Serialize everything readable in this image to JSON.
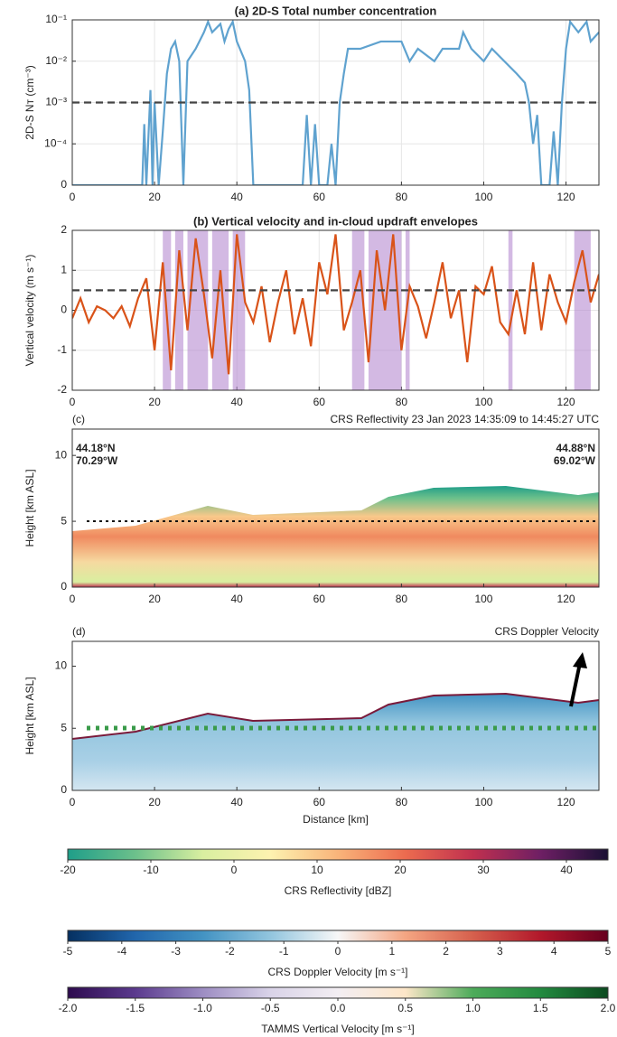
{
  "chart_data": [
    {
      "type": "line",
      "title": "(a) 2D-S Total number concentration",
      "ylabel": "2D-S Nᴛ (cm⁻³)",
      "color": "#5fa2cf",
      "log_scale": true,
      "grid": true,
      "x": [
        0,
        17,
        17.5,
        18,
        19,
        19.5,
        20,
        21,
        22,
        23,
        24,
        25,
        26,
        27,
        28,
        30,
        32,
        33,
        34,
        36,
        37,
        38,
        39,
        40,
        42,
        43,
        44,
        45,
        56,
        57,
        58,
        59,
        60,
        62,
        63,
        64,
        65,
        66,
        67,
        70,
        75,
        80,
        82,
        84,
        88,
        90,
        94,
        95,
        97,
        100,
        102,
        105,
        108,
        110,
        111,
        112,
        113,
        114,
        116,
        117,
        118,
        119,
        120,
        121,
        123,
        125,
        126,
        128
      ],
      "values": [
        1e-05,
        1e-05,
        0.0003,
        1e-05,
        0.002,
        1e-05,
        0.001,
        1e-05,
        0.0002,
        0.005,
        0.02,
        0.03,
        0.01,
        1e-05,
        0.01,
        0.02,
        0.05,
        0.09,
        0.05,
        0.08,
        0.03,
        0.06,
        0.09,
        0.03,
        0.01,
        0.002,
        1e-05,
        1e-05,
        1e-05,
        0.0005,
        1e-05,
        0.0003,
        1e-05,
        1e-05,
        0.0001,
        1e-05,
        0.001,
        0.005,
        0.02,
        0.02,
        0.03,
        0.03,
        0.01,
        0.02,
        0.01,
        0.02,
        0.02,
        0.05,
        0.02,
        0.01,
        0.02,
        0.01,
        0.005,
        0.003,
        0.001,
        0.0001,
        0.0005,
        1e-05,
        1e-05,
        0.0002,
        1e-05,
        0.001,
        0.02,
        0.09,
        0.05,
        0.09,
        0.03,
        0.05
      ],
      "reference_line": 0.001,
      "xlim": [
        0,
        128
      ],
      "xticks": [
        0,
        20,
        40,
        60,
        80,
        100,
        120
      ],
      "ylim": [
        1e-05,
        0.1
      ],
      "yticks": [
        {
          "value": 1e-05,
          "label": "0"
        },
        {
          "value": 0.0001,
          "label": "10⁻⁴"
        },
        {
          "value": 0.001,
          "label": "10⁻³"
        },
        {
          "value": 0.01,
          "label": "10⁻²"
        },
        {
          "value": 0.1,
          "label": "10⁻¹"
        }
      ]
    },
    {
      "type": "line",
      "title": "(b) Vertical velocity and in-cloud updraft envelopes",
      "ylabel": "Vertical velocity (m s⁻¹)",
      "color": "#d95319",
      "shade_color": "#b58bd0",
      "grid": true,
      "x": [
        0,
        2,
        4,
        6,
        8,
        10,
        12,
        14,
        16,
        18,
        20,
        22,
        24,
        26,
        28,
        30,
        32,
        34,
        36,
        38,
        40,
        42,
        44,
        46,
        48,
        50,
        52,
        54,
        56,
        58,
        60,
        62,
        64,
        66,
        68,
        70,
        72,
        74,
        76,
        78,
        80,
        82,
        84,
        86,
        88,
        90,
        92,
        94,
        96,
        98,
        100,
        102,
        104,
        106,
        108,
        110,
        112,
        114,
        116,
        118,
        120,
        122,
        124,
        126,
        128
      ],
      "values": [
        -0.2,
        0.3,
        -0.3,
        0.1,
        0.0,
        -0.2,
        0.1,
        -0.4,
        0.3,
        0.8,
        -1.0,
        1.2,
        -1.5,
        1.5,
        -0.5,
        1.8,
        0.4,
        -1.2,
        1.0,
        -1.6,
        1.9,
        0.2,
        -0.3,
        0.6,
        -0.8,
        0.2,
        1.0,
        -0.6,
        0.3,
        -0.9,
        1.2,
        0.4,
        1.9,
        -0.5,
        0.2,
        1.0,
        -1.3,
        1.5,
        0.0,
        1.9,
        -1.0,
        0.6,
        0.1,
        -0.7,
        0.2,
        1.2,
        -0.2,
        0.5,
        -1.3,
        0.6,
        0.4,
        1.1,
        -0.3,
        -0.6,
        0.5,
        -0.6,
        1.2,
        -0.5,
        0.9,
        0.2,
        -0.3,
        0.7,
        1.5,
        0.2,
        0.9
      ],
      "shaded_regions": [
        [
          22,
          24
        ],
        [
          25,
          27
        ],
        [
          28,
          33
        ],
        [
          34,
          38
        ],
        [
          39,
          42
        ],
        [
          68,
          71
        ],
        [
          72,
          80
        ],
        [
          81,
          82
        ],
        [
          106,
          107
        ],
        [
          122,
          126
        ]
      ],
      "reference_line": 0.5,
      "xlim": [
        0,
        128
      ],
      "xticks": [
        0,
        20,
        40,
        60,
        80,
        100,
        120
      ],
      "ylim": [
        -2,
        2
      ],
      "yticks": [
        -2,
        -1,
        0,
        1,
        2
      ]
    },
    {
      "type": "curtain",
      "panel_label": "(c)",
      "title": "CRS Reflectivity 23 Jan 2023 14:35:09 to 14:45:27 UTC",
      "ylabel": "Height [km ASL]",
      "annotations": [
        "44.18°N",
        "70.29°W",
        "44.88°N",
        "69.02°W"
      ],
      "xlim": [
        0,
        128
      ],
      "xticks": [
        0,
        20,
        40,
        60,
        80,
        100,
        120
      ],
      "ylim": [
        0,
        12
      ],
      "yticks": [
        0,
        5,
        10
      ]
    },
    {
      "type": "curtain",
      "panel_label": "(d)",
      "title": "CRS Doppler Velocity",
      "ylabel": "Height [km ASL]",
      "xlabel": "Distance [km]",
      "xlim": [
        0,
        128
      ],
      "xticks": [
        0,
        20,
        40,
        60,
        80,
        100,
        120
      ],
      "ylim": [
        0,
        12
      ],
      "yticks": [
        0,
        5,
        10
      ]
    },
    {
      "type": "colorbar",
      "label": "CRS Reflectivity [dBZ]",
      "xlim": [
        -20,
        45
      ],
      "xticks": [
        -20,
        -10,
        0,
        10,
        20,
        30,
        40
      ],
      "colors": [
        "#1f9e89",
        "#6cc08b",
        "#d9efa0",
        "#fdf2b0",
        "#f9b47a",
        "#ec6b4f",
        "#c0304f",
        "#6e1f64",
        "#1a1034"
      ]
    },
    {
      "type": "colorbar",
      "label": "CRS Doppler Velocity [m s⁻¹]",
      "xlim": [
        -5,
        5
      ],
      "xticks": [
        -5,
        -4,
        -3,
        -2,
        -1,
        0,
        1,
        2,
        3,
        4,
        5
      ],
      "colors": [
        "#053061",
        "#2166ac",
        "#4393c3",
        "#92c5de",
        "#f7f7f7",
        "#f4a582",
        "#d6604d",
        "#b2182b",
        "#67001f"
      ]
    },
    {
      "type": "colorbar",
      "label": "TAMMS Vertical Velocity [m s⁻¹]",
      "xlim": [
        -2,
        2
      ],
      "xticks": [
        {
          "value": -2,
          "label": "-2.0"
        },
        {
          "value": -1.5,
          "label": "-1.5"
        },
        {
          "value": -1,
          "label": "-1.0"
        },
        {
          "value": -0.5,
          "label": "-0.5"
        },
        {
          "value": 0,
          "label": "0.0"
        },
        {
          "value": 0.5,
          "label": "0.5"
        },
        {
          "value": 1,
          "label": "1.0"
        },
        {
          "value": 1.5,
          "label": "1.5"
        },
        {
          "value": 2,
          "label": "2.0"
        }
      ],
      "colors": [
        "#2d0a4e",
        "#5b3a8e",
        "#9d8dc3",
        "#d9d3e8",
        "#f3eef3",
        "#fde6c8",
        "#4dab5a",
        "#238a3f",
        "#0b4a1f"
      ]
    }
  ]
}
